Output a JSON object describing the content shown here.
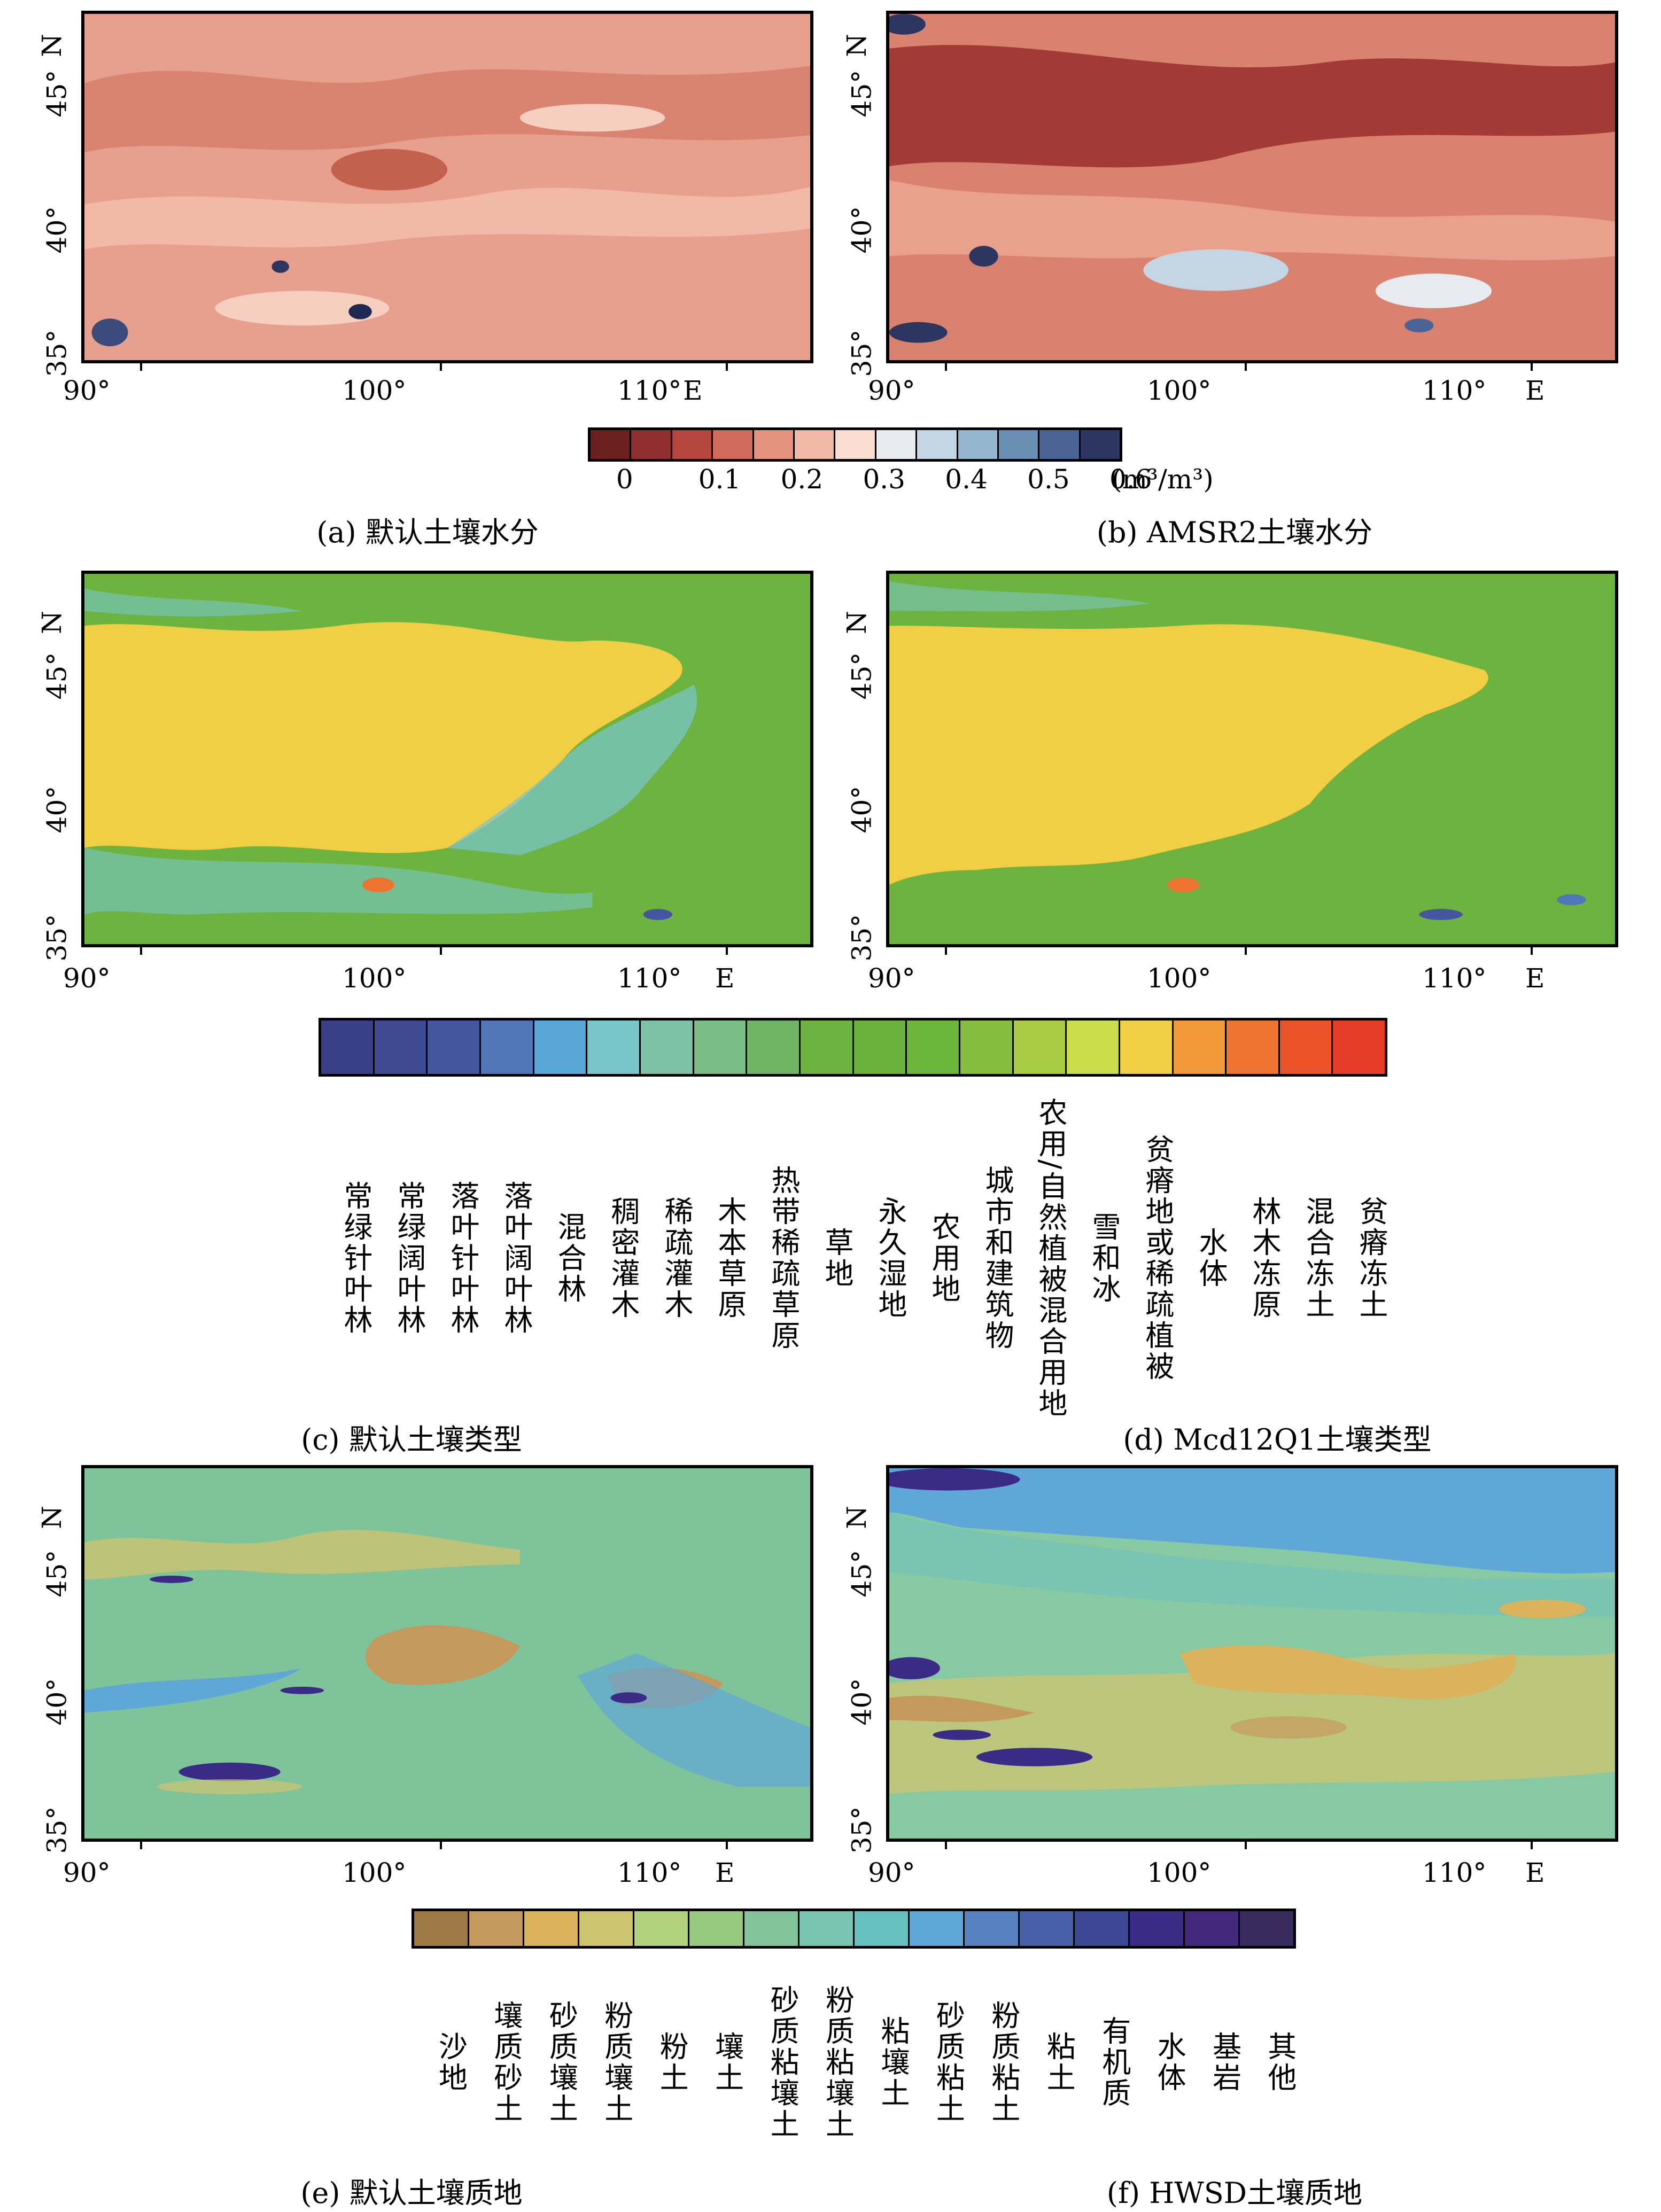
{
  "axes": {
    "x_ticks": [
      "90°",
      "100°",
      "110°"
    ],
    "x_unit": "E",
    "y_ticks": [
      "35°",
      "40°",
      "45°"
    ],
    "y_unit": "N"
  },
  "panels": {
    "a": {
      "caption": "(a) 默认土壤水分",
      "base_color": "#e8a08e"
    },
    "b": {
      "caption": "(b) AMSR2土壤水分",
      "base_color": "#d9826f"
    },
    "c": {
      "caption": "(c) 默认土壤类型",
      "base_color": "#6db33f"
    },
    "d": {
      "caption": "(d) Mcd12Q1土壤类型",
      "base_color": "#6db33f"
    },
    "e": {
      "caption": "(e) 默认土壤质地",
      "base_color": "#7fc39a"
    },
    "f": {
      "caption": "(f) HWSD土壤质地",
      "base_color": "#86c9a3"
    }
  },
  "moisture_colorbar": {
    "colors": [
      "#6b1f1f",
      "#8e2e2e",
      "#b5463f",
      "#d06a5a",
      "#e5927e",
      "#f2b9a6",
      "#fadcd0",
      "#e8ecf0",
      "#c4d6e3",
      "#95b6cf",
      "#6a8fb5",
      "#4a6496",
      "#2c3660"
    ],
    "tick_labels": [
      "0",
      "0.1",
      "0.2",
      "0.3",
      "0.4",
      "0.5",
      "0.6"
    ],
    "unit": "(m³/m³)"
  },
  "landcover_legend": {
    "colors": [
      "#3a3f8a",
      "#3e4a92",
      "#44579e",
      "#5177b8",
      "#58a7d6",
      "#79c6c8",
      "#7cc1a8",
      "#78be85",
      "#6fb564",
      "#6db33f",
      "#6bb23c",
      "#6cb63e",
      "#85bd3f",
      "#a9cc45",
      "#cbdc4b",
      "#f1cf44",
      "#f29a38",
      "#ee7230",
      "#ea5227",
      "#e53c27"
    ],
    "labels": [
      "常绿针叶林",
      "常绿阔叶林",
      "落叶针叶林",
      "落叶阔叶林",
      "混合林",
      "稠密灌木",
      "稀疏灌木",
      "木本草原",
      "热带稀疏草原",
      "草地",
      "永久湿地",
      "农用地",
      "城市和建筑物",
      "农用/自然植被混合用地",
      "雪和冰",
      "贫瘠地或稀疏植被",
      "水体",
      "林木冻原",
      "混合冻土",
      "贫瘠冻土"
    ]
  },
  "texture_legend": {
    "colors": [
      "#9e7a45",
      "#c49a5c",
      "#dbb35d",
      "#cdc470",
      "#b3d27d",
      "#97c97f",
      "#83c39b",
      "#79c4b2",
      "#67c0c0",
      "#5fa7d7",
      "#5680bf",
      "#465fa6",
      "#3d4895",
      "#3a2c86",
      "#42287a",
      "#3b2a5e"
    ],
    "labels": [
      "沙地",
      "壤质砂土",
      "砂质壤土",
      "粉质壤土",
      "粉土",
      "壤土",
      "砂质粘壤土",
      "粉质粘壤土",
      "粘壤土",
      "砂质粘土",
      "粉质粘土",
      "粘土",
      "有机质",
      "水体",
      "基岩",
      "其他"
    ]
  }
}
